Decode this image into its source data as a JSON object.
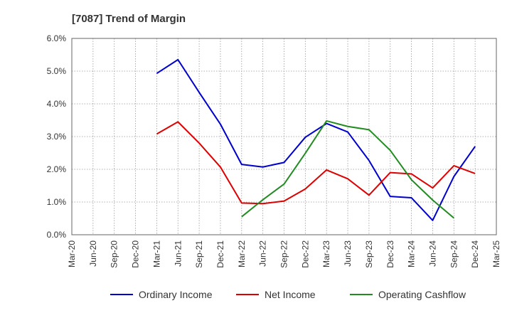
{
  "chart_data": {
    "type": "line",
    "title": "[7087]  Trend of Margin",
    "xlabel": "",
    "ylabel": "",
    "categories": [
      "Mar-20",
      "Jun-20",
      "Sep-20",
      "Dec-20",
      "Mar-21",
      "Jun-21",
      "Sep-21",
      "Dec-21",
      "Mar-22",
      "Jun-22",
      "Sep-22",
      "Dec-22",
      "Mar-23",
      "Jun-23",
      "Sep-23",
      "Dec-23",
      "Mar-24",
      "Jun-24",
      "Sep-24",
      "Dec-24",
      "Mar-25"
    ],
    "ylim": [
      0,
      6
    ],
    "yticks": [
      0,
      1,
      2,
      3,
      4,
      5,
      6
    ],
    "ytick_labels": [
      "0.0%",
      "1.0%",
      "2.0%",
      "3.0%",
      "4.0%",
      "5.0%",
      "6.0%"
    ],
    "grid": true,
    "legend_position": "bottom",
    "series": [
      {
        "name": "Ordinary Income",
        "color": "#0000cc",
        "values": [
          null,
          null,
          null,
          null,
          4.93,
          5.35,
          4.35,
          3.38,
          2.15,
          2.07,
          2.21,
          2.98,
          3.4,
          3.14,
          2.27,
          1.17,
          1.13,
          0.44,
          1.78,
          2.7,
          null
        ]
      },
      {
        "name": "Net Income",
        "color": "#dd0000",
        "values": [
          null,
          null,
          null,
          null,
          3.08,
          3.45,
          2.8,
          2.07,
          0.97,
          0.95,
          1.03,
          1.4,
          1.98,
          1.71,
          1.21,
          1.9,
          1.86,
          1.43,
          2.11,
          1.87,
          null
        ]
      },
      {
        "name": "Operating Cashflow",
        "color": "#228b22",
        "values": [
          null,
          null,
          null,
          null,
          null,
          null,
          null,
          null,
          0.55,
          1.07,
          1.55,
          2.49,
          3.48,
          3.31,
          3.21,
          2.58,
          1.68,
          1.06,
          0.51,
          null,
          null
        ]
      }
    ]
  }
}
